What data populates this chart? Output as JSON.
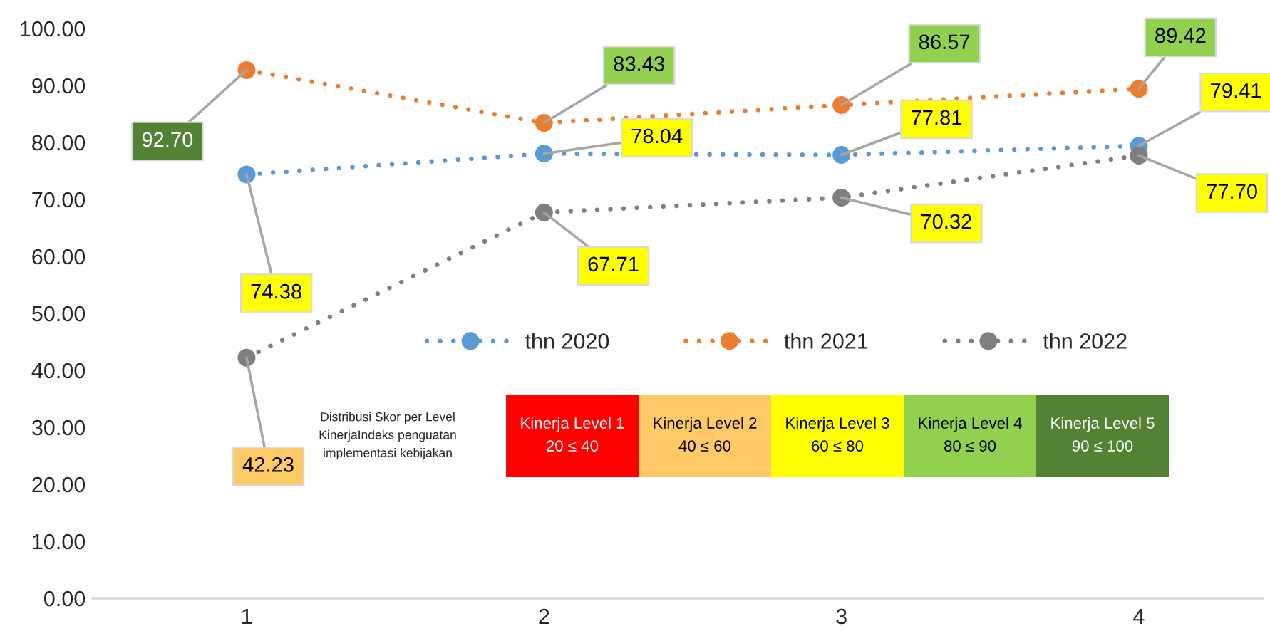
{
  "chart_data": [
    {
      "type": "line",
      "categories": [
        "1",
        "2",
        "3",
        "4"
      ],
      "ylim": [
        0,
        100
      ],
      "yticks": [
        {
          "value": 0,
          "label": "0.00"
        },
        {
          "value": 10,
          "label": "10.00"
        },
        {
          "value": 20,
          "label": "20.00"
        },
        {
          "value": 30,
          "label": "30.00"
        },
        {
          "value": 40,
          "label": "40.00"
        },
        {
          "value": 50,
          "label": "50.00"
        },
        {
          "value": 60,
          "label": "60.00"
        },
        {
          "value": 70,
          "label": "70.00"
        },
        {
          "value": 80,
          "label": "80.00"
        },
        {
          "value": 90,
          "label": "90.00"
        },
        {
          "value": 100,
          "label": "100.00"
        }
      ],
      "marker": "circle",
      "line_style": "dotted",
      "legend": "center",
      "annotations": [
        "Distribusi Skor per Level\nKinerjaIndeks penguatan\nimplementasi kebijakan"
      ],
      "series": [
        {
          "name": "thn 2020",
          "color": "#5b9bd5",
          "values": [
            74.38,
            78.04,
            77.81,
            79.41
          ],
          "value_labels": [
            "74.38",
            "78.04",
            "77.81",
            "79.41"
          ]
        },
        {
          "name": "thn 2021",
          "color": "#ed7d31",
          "values": [
            92.7,
            83.43,
            86.57,
            89.42
          ],
          "value_labels": [
            "92.70",
            "83.43",
            "86.57",
            "89.42"
          ]
        },
        {
          "name": "thn 2022",
          "color": "#7f7f7f",
          "values": [
            42.23,
            67.71,
            70.32,
            77.7
          ],
          "value_labels": [
            "42.23",
            "67.71",
            "70.32",
            "77.70"
          ]
        }
      ]
    },
    {
      "type": "other",
      "categories": [
        "Kinerja Level 1",
        "Kinerja Level 2",
        "Kinerja Level 3",
        "Kinerja Level 4",
        "Kinerja Level 5"
      ],
      "values": [
        40,
        60,
        80,
        90,
        100
      ],
      "value_labels": [
        "20 ≤ 40",
        "40 ≤ 60",
        "60 ≤ 80",
        "80 ≤ 90",
        "90 ≤ 100"
      ],
      "colors": [
        "#ff0000",
        "#ffc966",
        "#ffff00",
        "#92d050",
        "#548235"
      ]
    }
  ]
}
